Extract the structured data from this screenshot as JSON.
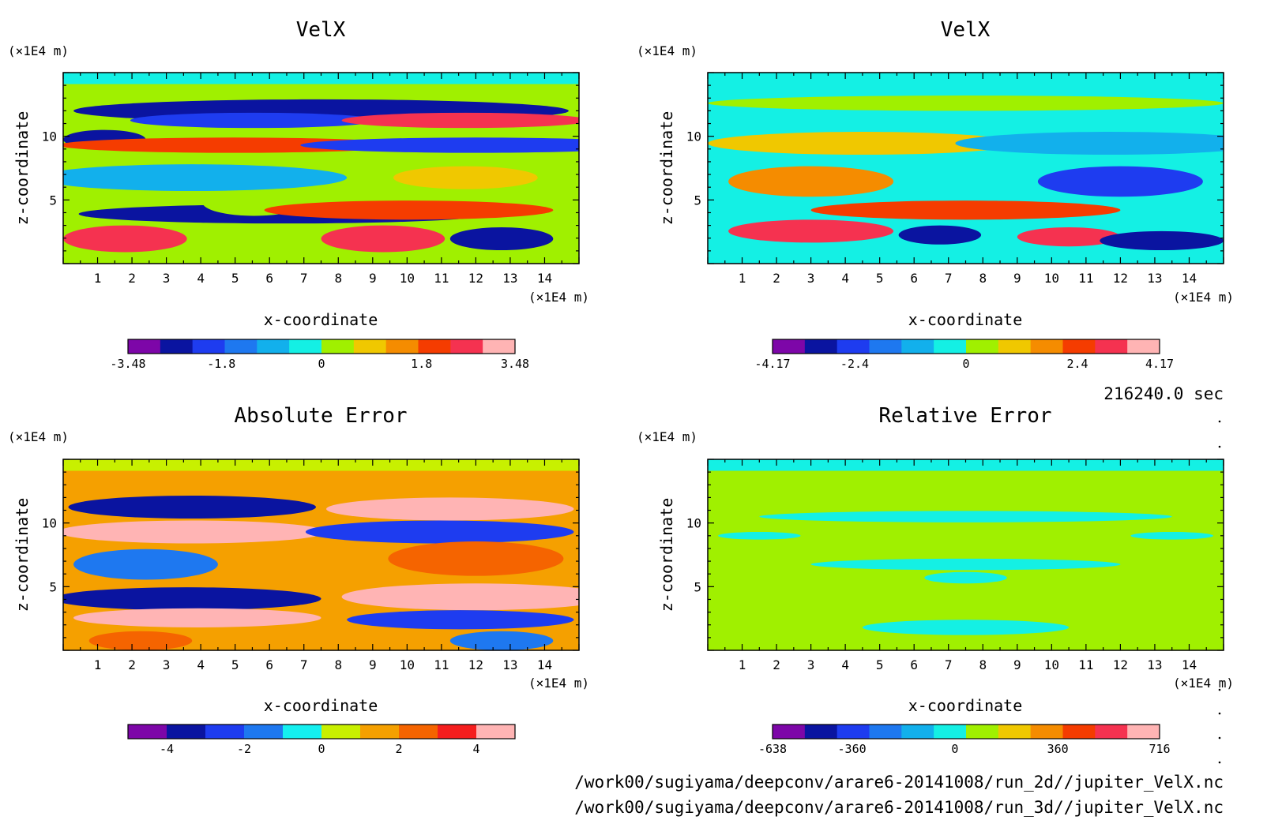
{
  "chart_data": [
    {
      "type": "heatmap",
      "title": "VelX",
      "xlabel": "x-coordinate",
      "ylabel": "z-coordinate",
      "x_unit": "(×1E4 m)",
      "y_unit": "(×1E4 m)",
      "x_ticks": [
        "1",
        "2",
        "3",
        "4",
        "5",
        "6",
        "7",
        "8",
        "9",
        "10",
        "11",
        "12",
        "13",
        "14"
      ],
      "y_ticks": [
        "5",
        "10"
      ],
      "xlim": [
        0,
        15
      ],
      "ylim": [
        0,
        15
      ],
      "colorbar": {
        "labels": [
          "-3.48",
          "-1.8",
          "0",
          "1.8",
          "3.48"
        ],
        "range": [
          -3.48,
          3.48
        ],
        "colors": [
          "#7d06a8",
          "#0a14a0",
          "#1e3cf0",
          "#1e78f0",
          "#12b0ec",
          "#14f0e4",
          "#a0f000",
          "#f0c800",
          "#f58c00",
          "#f53c00",
          "#f53250",
          "#ffb4b4"
        ]
      }
    },
    {
      "type": "heatmap",
      "title": "VelX",
      "xlabel": "x-coordinate",
      "ylabel": "z-coordinate",
      "x_unit": "(×1E4 m)",
      "y_unit": "(×1E4 m)",
      "x_ticks": [
        "1",
        "2",
        "3",
        "4",
        "5",
        "6",
        "7",
        "8",
        "9",
        "10",
        "11",
        "12",
        "13",
        "14"
      ],
      "y_ticks": [
        "5",
        "10"
      ],
      "xlim": [
        0,
        15
      ],
      "ylim": [
        0,
        15
      ],
      "colorbar": {
        "labels": [
          "-4.17",
          "-2.4",
          "0",
          "2.4",
          "4.17"
        ],
        "range": [
          -4.17,
          4.17
        ],
        "colors": [
          "#7d06a8",
          "#0a14a0",
          "#1e3cf0",
          "#1e78f0",
          "#12b0ec",
          "#14f0e4",
          "#a0f000",
          "#f0c800",
          "#f58c00",
          "#f53c00",
          "#f53250",
          "#ffb4b4"
        ]
      }
    },
    {
      "type": "heatmap",
      "title": "Absolute Error",
      "xlabel": "x-coordinate",
      "ylabel": "z-coordinate",
      "x_unit": "(×1E4 m)",
      "y_unit": "(×1E4 m)",
      "x_ticks": [
        "1",
        "2",
        "3",
        "4",
        "5",
        "6",
        "7",
        "8",
        "9",
        "10",
        "11",
        "12",
        "13",
        "14"
      ],
      "y_ticks": [
        "5",
        "10"
      ],
      "xlim": [
        0,
        15
      ],
      "ylim": [
        0,
        15
      ],
      "colorbar": {
        "labels": [
          "-4",
          "-2",
          "0",
          "2",
          "4"
        ],
        "range": [
          -5,
          5
        ],
        "colors": [
          "#7d06a8",
          "#0a14a0",
          "#1e3cf0",
          "#1e78f0",
          "#14f0f0",
          "#c8f000",
          "#f5a000",
          "#f56400",
          "#f51e1e",
          "#ffb4b4"
        ]
      }
    },
    {
      "type": "heatmap",
      "title": "Relative Error",
      "xlabel": "x-coordinate",
      "ylabel": "z-coordinate",
      "x_unit": "(×1E4 m)",
      "y_unit": "(×1E4 m)",
      "x_ticks": [
        "1",
        "2",
        "3",
        "4",
        "5",
        "6",
        "7",
        "8",
        "9",
        "10",
        "11",
        "12",
        "13",
        "14"
      ],
      "y_ticks": [
        "5",
        "10"
      ],
      "xlim": [
        0,
        15
      ],
      "ylim": [
        0,
        15
      ],
      "colorbar": {
        "labels": [
          "-638",
          "-360",
          "0",
          "360",
          "716"
        ],
        "range": [
          -638,
          716
        ],
        "colors": [
          "#7d06a8",
          "#0a14a0",
          "#1e3cf0",
          "#1e78f0",
          "#12b0ec",
          "#14f0e4",
          "#a0f000",
          "#f0c800",
          "#f58c00",
          "#f53c00",
          "#f53250",
          "#ffb4b4"
        ]
      }
    }
  ],
  "time_label": "216240.0 sec",
  "file_paths": [
    "/work00/sugiyama/deepconv/arare6-20141008/run_2d//jupiter_VelX.nc",
    "/work00/sugiyama/deepconv/arare6-20141008/run_3d//jupiter_VelX.nc"
  ]
}
